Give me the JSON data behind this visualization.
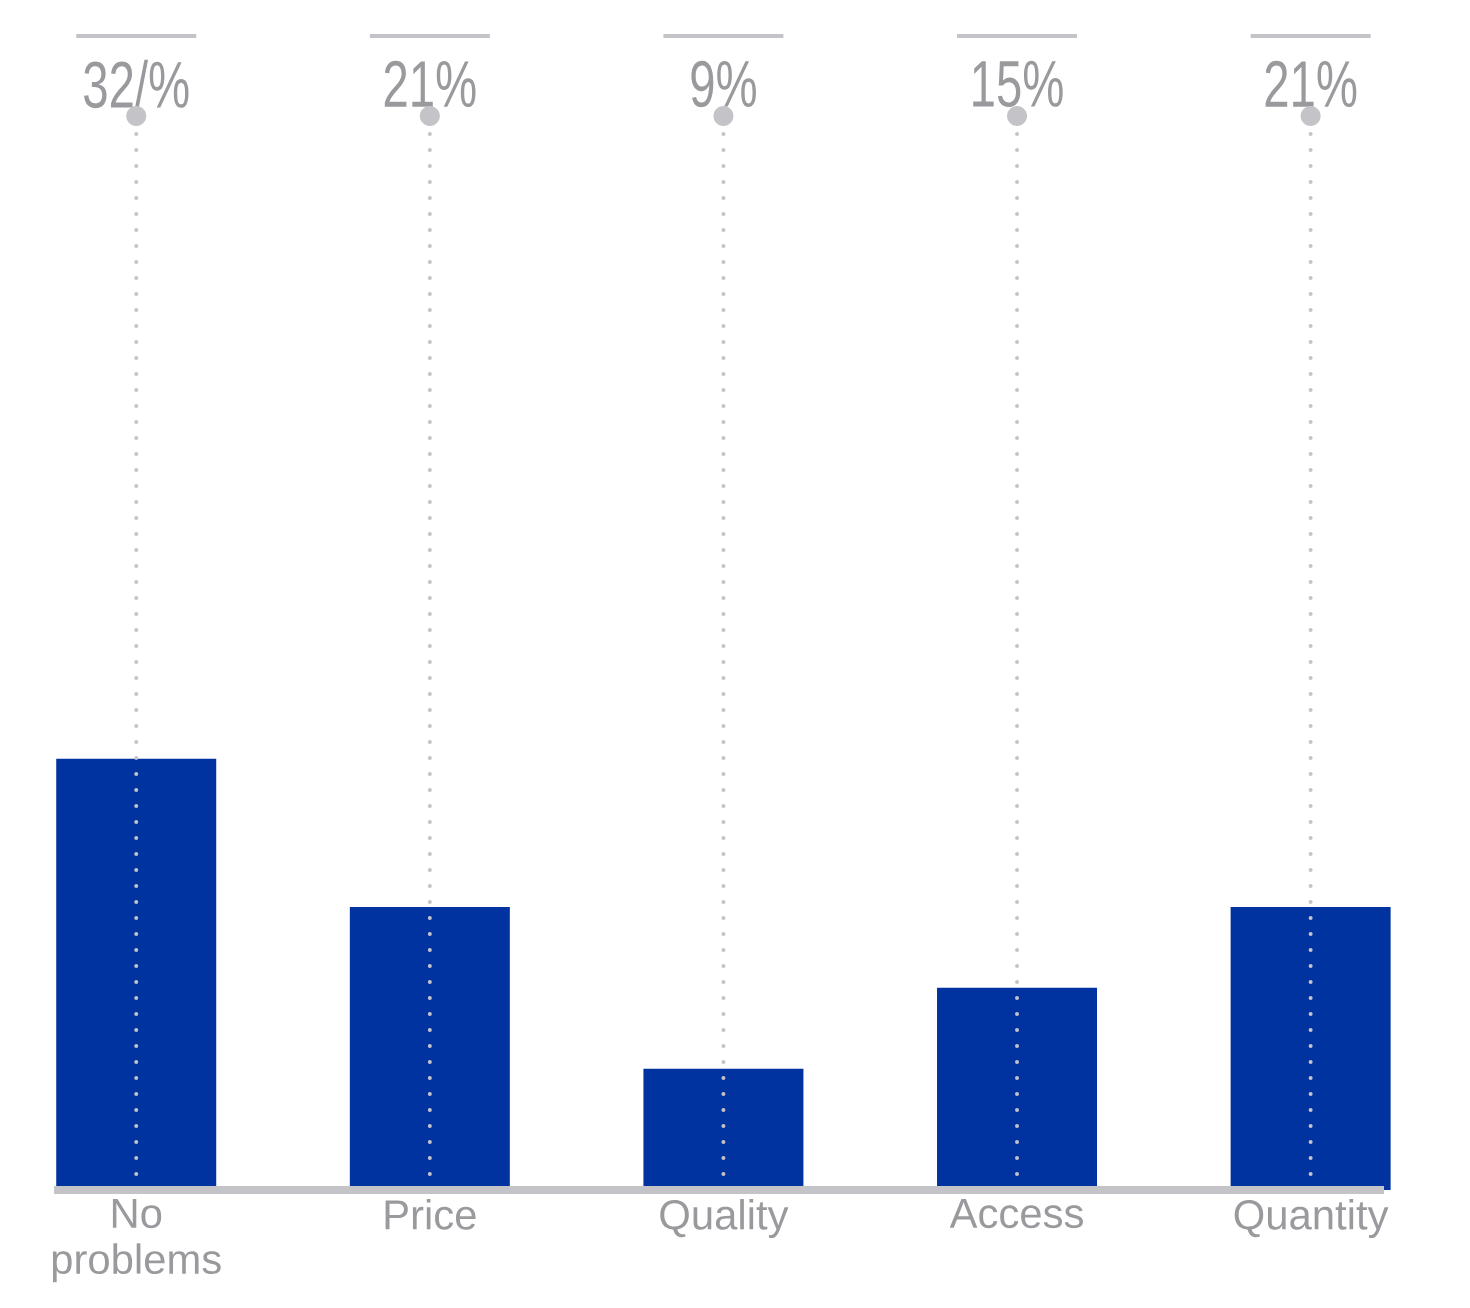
{
  "chart_data": {
    "type": "bar",
    "categories": [
      "No problems",
      "Price",
      "Quality",
      "Access",
      "Quantity"
    ],
    "values": [
      32,
      21,
      9,
      15,
      21
    ],
    "value_labels": [
      "32/%",
      "21%",
      "9%",
      "15%",
      "21%"
    ],
    "color": "#0033a0",
    "grid": "x"
  }
}
